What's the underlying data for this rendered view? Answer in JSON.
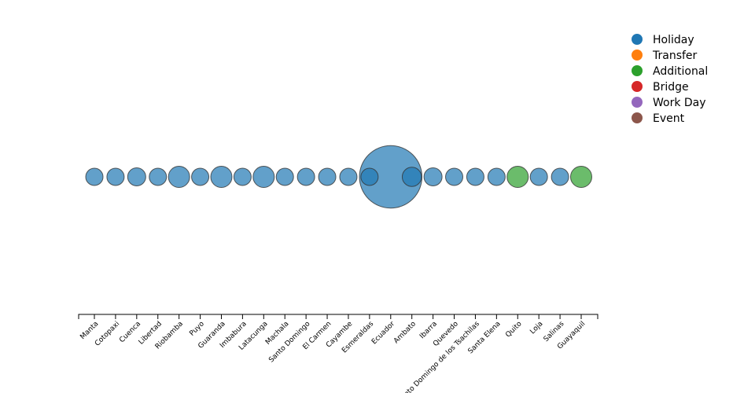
{
  "chart_data": {
    "type": "scatter",
    "categories": [
      "Manta",
      "Cotopaxi",
      "Cuenca",
      "Libertad",
      "Riobamba",
      "Puyo",
      "Guaranda",
      "Imbabura",
      "Latacunga",
      "Machala",
      "Santo Domingo",
      "El Carmen",
      "Cayambe",
      "Esmeraldas",
      "Ecuador",
      "Ambato",
      "Ibarra",
      "Quevedo",
      "Santo Domingo de los Tsachilas",
      "Santa Elena",
      "Quito",
      "Loja",
      "Salinas",
      "Guayaquil"
    ],
    "points": [
      {
        "x": "Manta",
        "size": 1,
        "type": "Holiday"
      },
      {
        "x": "Cotopaxi",
        "size": 1,
        "type": "Holiday"
      },
      {
        "x": "Cuenca",
        "size": 1.2,
        "type": "Holiday"
      },
      {
        "x": "Libertad",
        "size": 1,
        "type": "Holiday"
      },
      {
        "x": "Riobamba",
        "size": 2,
        "type": "Holiday"
      },
      {
        "x": "Puyo",
        "size": 1,
        "type": "Holiday"
      },
      {
        "x": "Guaranda",
        "size": 2,
        "type": "Holiday"
      },
      {
        "x": "Imbabura",
        "size": 1,
        "type": "Holiday"
      },
      {
        "x": "Latacunga",
        "size": 2,
        "type": "Holiday"
      },
      {
        "x": "Machala",
        "size": 1,
        "type": "Holiday"
      },
      {
        "x": "Santo Domingo",
        "size": 1,
        "type": "Holiday"
      },
      {
        "x": "El Carmen",
        "size": 1,
        "type": "Holiday"
      },
      {
        "x": "Cayambe",
        "size": 1,
        "type": "Holiday"
      },
      {
        "x": "Esmeraldas",
        "size": 1,
        "type": "Holiday"
      },
      {
        "x": "Ecuador",
        "size": 12.5,
        "type": "Holiday"
      },
      {
        "x": "Ambato",
        "size": 1.5,
        "type": "Holiday"
      },
      {
        "x": "Ibarra",
        "size": 1.2,
        "type": "Holiday"
      },
      {
        "x": "Quevedo",
        "size": 1,
        "type": "Holiday"
      },
      {
        "x": "Santo Domingo de los Tsachilas",
        "size": 1,
        "type": "Holiday"
      },
      {
        "x": "Santa Elena",
        "size": 1,
        "type": "Holiday"
      },
      {
        "x": "Quito",
        "size": 2,
        "type": "Additional"
      },
      {
        "x": "Loja",
        "size": 1,
        "type": "Holiday"
      },
      {
        "x": "Salinas",
        "size": 1,
        "type": "Holiday"
      },
      {
        "x": "Guayaquil",
        "size": 2,
        "type": "Additional"
      }
    ],
    "legend": [
      {
        "name": "Holiday",
        "color": "#1f77b4"
      },
      {
        "name": "Transfer",
        "color": "#ff7f0e"
      },
      {
        "name": "Additional",
        "color": "#2ca02c"
      },
      {
        "name": "Bridge",
        "color": "#d62728"
      },
      {
        "name": "Work Day",
        "color": "#9467bd"
      },
      {
        "name": "Event",
        "color": "#8c564b"
      }
    ],
    "legend_position": "top-right",
    "grid": false
  }
}
